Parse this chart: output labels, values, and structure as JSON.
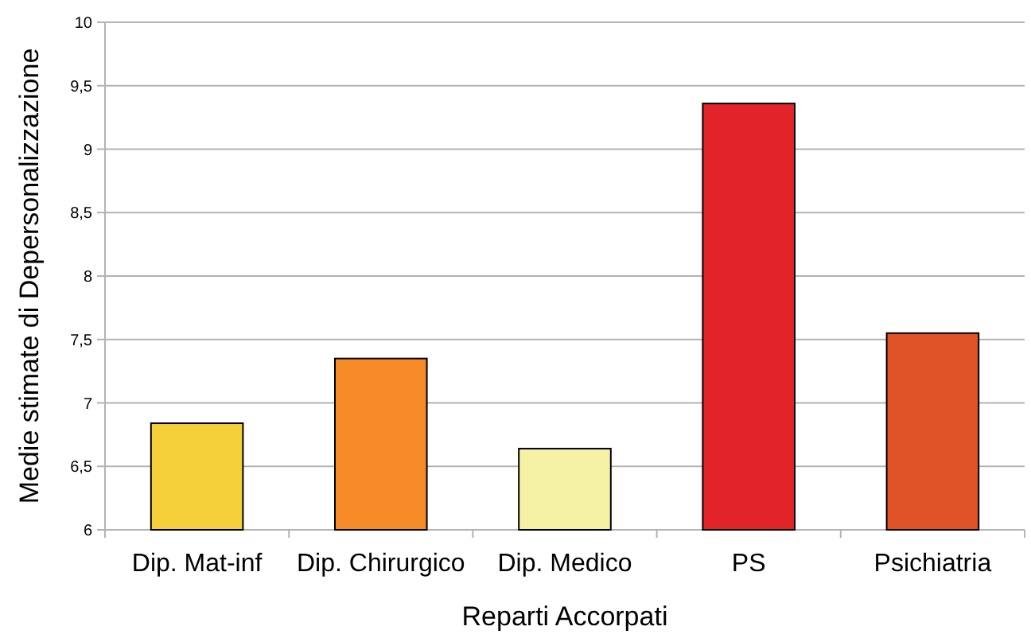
{
  "chart_data": {
    "type": "bar",
    "xlabel": "Reparti Accorpati",
    "ylabel": "Medie stimate di Depersonalizzazione",
    "categories": [
      "Dip. Mat-inf",
      "Dip. Chirurgico",
      "Dip. Medico",
      "PS",
      "Psichiatria"
    ],
    "values": [
      6.84,
      7.35,
      6.64,
      9.36,
      7.55
    ],
    "colors": [
      "#f5d03a",
      "#f58a26",
      "#f5f2a6",
      "#e3232a",
      "#e05228"
    ],
    "ylim": [
      6,
      10
    ],
    "yticks": [
      6,
      {
        "value": 6.5,
        "label": "6,5"
      },
      7,
      {
        "value": 7.5,
        "label": "7,5"
      },
      8,
      {
        "value": 8.5,
        "label": "8,5"
      },
      9,
      {
        "value": 9.5,
        "label": "9,5"
      },
      10
    ],
    "grid": "y"
  }
}
